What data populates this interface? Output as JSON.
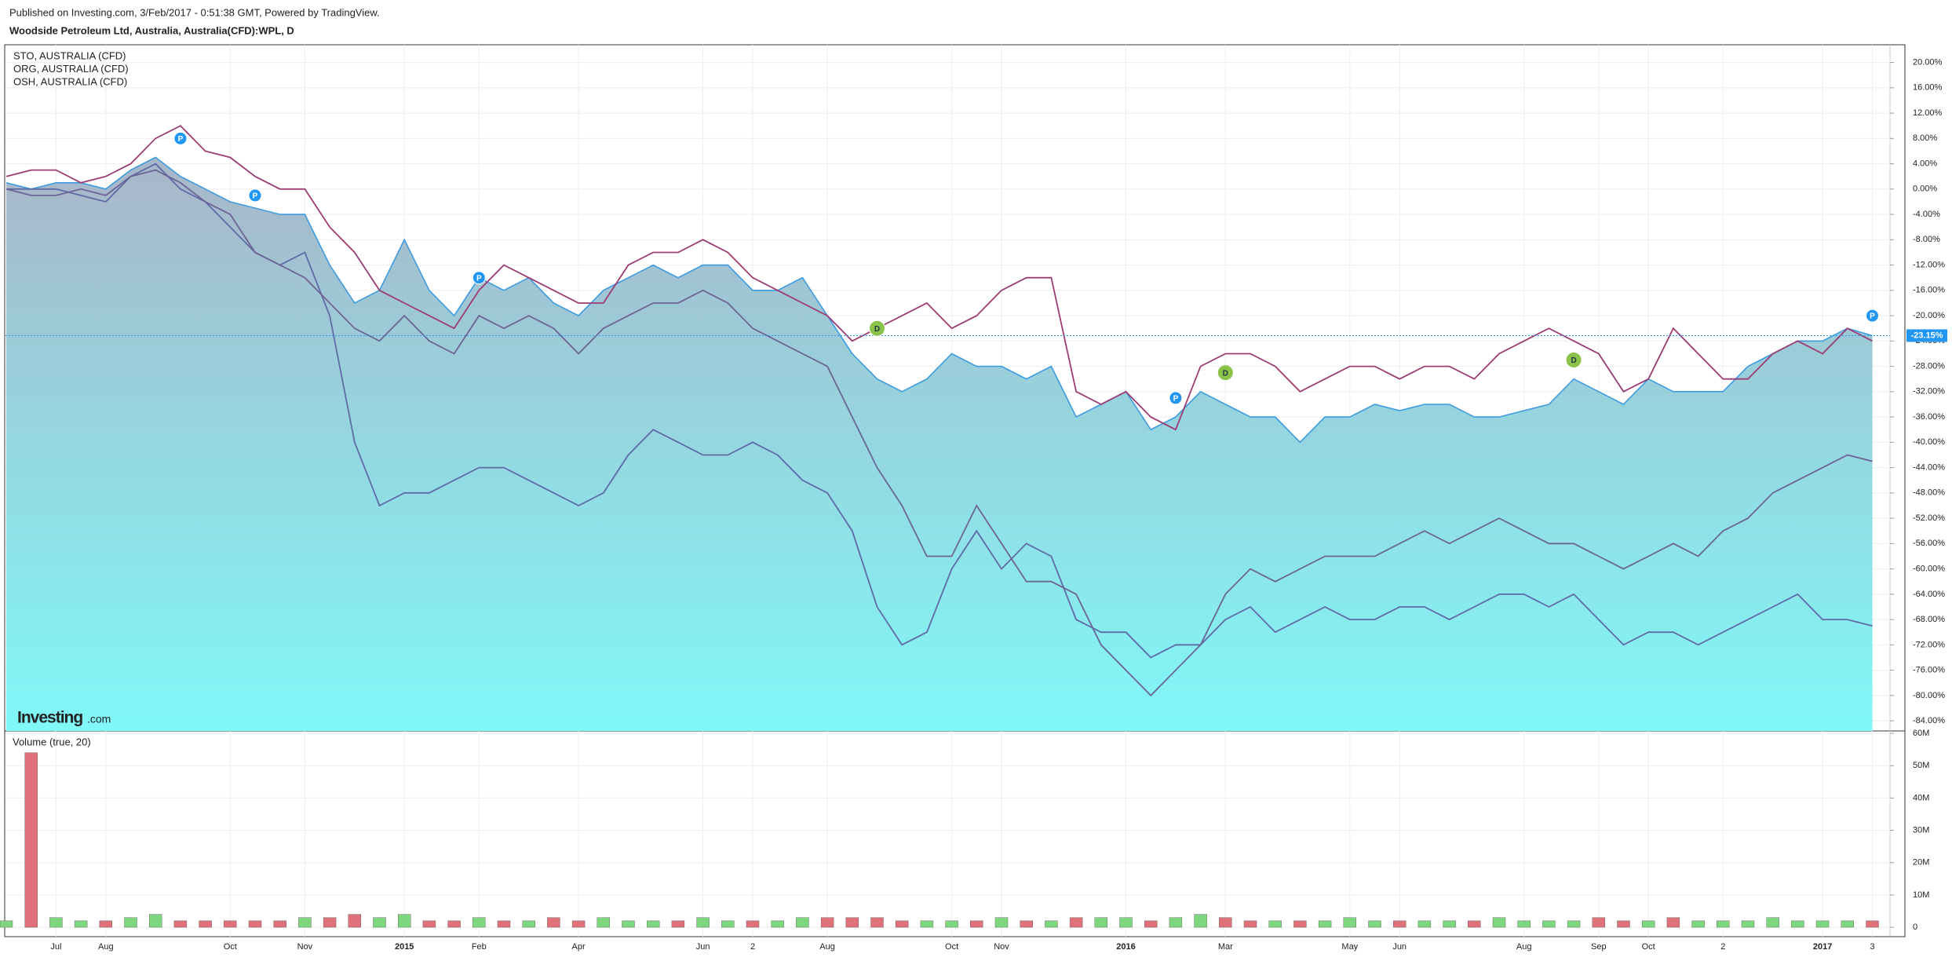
{
  "header": {
    "published": "Published on Investing.com, 3/Feb/2017 - 0:51:38 GMT, Powered by TradingView.",
    "title": "Woodside Petroleum Ltd, Australia, Australia(CFD):WPL, D"
  },
  "watermark": {
    "brand": "Investing",
    "suffix": ".com"
  },
  "chart_data": [
    {
      "type": "area",
      "categories": [
        null,
        null,
        "Jul",
        null,
        "Aug",
        null,
        null,
        null,
        null,
        "Oct",
        null,
        null,
        "Nov",
        null,
        null,
        null,
        "2015",
        null,
        null,
        "Feb",
        null,
        null,
        null,
        "Apr",
        null,
        null,
        null,
        null,
        "Jun",
        null,
        "2",
        null,
        null,
        "Aug",
        null,
        null,
        null,
        null,
        "Oct",
        null,
        "Nov",
        null,
        null,
        null,
        null,
        "2016",
        null,
        null,
        null,
        "Mar",
        null,
        null,
        null,
        null,
        "May",
        null,
        "Jun",
        null,
        null,
        null,
        null,
        "Aug",
        null,
        null,
        "Sep",
        null,
        "Oct",
        null,
        null,
        "2",
        null,
        null,
        null,
        "2017",
        null,
        "3"
      ],
      "bold_categories": [
        "2015",
        "2016",
        "2017"
      ],
      "main": {
        "color": "#3d9be0",
        "area_top": "#a9b6c9",
        "area_bottom": "#80f8f8",
        "values": [
          1,
          0,
          1,
          1,
          0,
          3,
          5,
          2,
          0,
          -2,
          -3,
          -4,
          -4,
          -12,
          -18,
          -16,
          -8,
          -16,
          -20,
          -14,
          -16,
          -14,
          -18,
          -20,
          -16,
          -14,
          -12,
          -14,
          -12,
          -12,
          -16,
          -16,
          -14,
          -20,
          -26,
          -30,
          -32,
          -30,
          -26,
          -28,
          -28,
          -30,
          -28,
          -36,
          -34,
          -32,
          -38,
          -36,
          -32,
          -34,
          -36,
          -36,
          -40,
          -36,
          -36,
          -34,
          -35,
          -34,
          -34,
          -36,
          -36,
          -35,
          -34,
          -30,
          -32,
          -34,
          -30,
          -32,
          -32,
          -32,
          -28,
          -26,
          -24,
          -24,
          -22,
          -23.15
        ]
      },
      "current": {
        "value": -23.15,
        "label": "-23.15%",
        "color": "#2196f3"
      },
      "series": [
        {
          "name": "STO, AUSTRALIA (CFD)",
          "color": "#5f6aa6",
          "values": [
            0,
            0,
            0,
            -1,
            -2,
            2,
            4,
            0,
            -2,
            -6,
            -10,
            -12,
            -10,
            -20,
            -40,
            -50,
            -48,
            -48,
            -46,
            -44,
            -44,
            -46,
            -48,
            -50,
            -48,
            -42,
            -38,
            -40,
            -42,
            -42,
            -40,
            -42,
            -46,
            -48,
            -54,
            -66,
            -72,
            -70,
            -60,
            -54,
            -60,
            -56,
            -58,
            -68,
            -70,
            -70,
            -74,
            -72,
            -72,
            -68,
            -66,
            -70,
            -68,
            -66,
            -68,
            -68,
            -66,
            -66,
            -68,
            -66,
            -64,
            -64,
            -66,
            -64,
            -68,
            -72,
            -70,
            -70,
            -72,
            -70,
            -68,
            -66,
            -64,
            -68,
            -68,
            -69
          ]
        },
        {
          "name": "ORG, AUSTRALIA (CFD)",
          "color": "#9c3c72",
          "values": [
            2,
            3,
            3,
            1,
            2,
            4,
            8,
            10,
            6,
            5,
            2,
            0,
            0,
            -6,
            -10,
            -16,
            -18,
            -20,
            -22,
            -16,
            -12,
            -14,
            -16,
            -18,
            -18,
            -12,
            -10,
            -10,
            -8,
            -10,
            -14,
            -16,
            -18,
            -20,
            -24,
            -22,
            -20,
            -18,
            -22,
            -20,
            -16,
            -14,
            -14,
            -32,
            -34,
            -32,
            -36,
            -38,
            -28,
            -26,
            -26,
            -28,
            -32,
            -30,
            -28,
            -28,
            -30,
            -28,
            -28,
            -30,
            -26,
            -24,
            -22,
            -24,
            -26,
            -32,
            -30,
            -22,
            -26,
            -30,
            -30,
            -26,
            -24,
            -26,
            -22,
            -24
          ]
        },
        {
          "name": "OSH, AUSTRALIA (CFD)",
          "color": "#6c6494",
          "values": [
            0,
            -1,
            -1,
            0,
            -1,
            2,
            3,
            1,
            -2,
            -4,
            -10,
            -12,
            -14,
            -18,
            -22,
            -24,
            -20,
            -24,
            -26,
            -20,
            -22,
            -20,
            -22,
            -26,
            -22,
            -20,
            -18,
            -18,
            -16,
            -18,
            -22,
            -24,
            -26,
            -28,
            -36,
            -44,
            -50,
            -58,
            -58,
            -50,
            -56,
            -62,
            -62,
            -64,
            -72,
            -76,
            -80,
            -76,
            -72,
            -64,
            -60,
            -62,
            -60,
            -58,
            -58,
            -58,
            -56,
            -54,
            -56,
            -54,
            -52,
            -54,
            -56,
            -56,
            -58,
            -60,
            -58,
            -56,
            -58,
            -54,
            -52,
            -48,
            -46,
            -44,
            -42,
            -43
          ]
        }
      ],
      "events": [
        {
          "label": "P",
          "index": 7,
          "value": 8,
          "color": "#2196f3"
        },
        {
          "label": "P",
          "index": 10,
          "value": -1,
          "color": "#2196f3"
        },
        {
          "label": "P",
          "index": 19,
          "value": -14,
          "color": "#2196f3"
        },
        {
          "label": "D",
          "index": 35,
          "value": -22,
          "color": "#8bc34a"
        },
        {
          "label": "P",
          "index": 47,
          "value": -33,
          "color": "#2196f3"
        },
        {
          "label": "D",
          "index": 49,
          "value": -29,
          "color": "#8bc34a"
        },
        {
          "label": "D",
          "index": 63,
          "value": -27,
          "color": "#8bc34a"
        },
        {
          "label": "P",
          "index": 75,
          "value": -20,
          "color": "#2196f3"
        }
      ],
      "ylim": [
        -85.6,
        22.8
      ],
      "yticks": [
        {
          "value": 20,
          "label": "20.00%"
        },
        {
          "value": 16,
          "label": "16.00%"
        },
        {
          "value": 12,
          "label": "12.00%"
        },
        {
          "value": 8,
          "label": "8.00%"
        },
        {
          "value": 4,
          "label": "4.00%"
        },
        {
          "value": 0,
          "label": "0.00%"
        },
        {
          "value": -4,
          "label": "-4.00%"
        },
        {
          "value": -8,
          "label": "-8.00%"
        },
        {
          "value": -12,
          "label": "-12.00%"
        },
        {
          "value": -16,
          "label": "-16.00%"
        },
        {
          "value": -20,
          "label": "-20.00%"
        },
        {
          "value": -24,
          "label": "-24.00%"
        },
        {
          "value": -28,
          "label": "-28.00%"
        },
        {
          "value": -32,
          "label": "-32.00%"
        },
        {
          "value": -36,
          "label": "-36.00%"
        },
        {
          "value": -40,
          "label": "-40.00%"
        },
        {
          "value": -44,
          "label": "-44.00%"
        },
        {
          "value": -48,
          "label": "-48.00%"
        },
        {
          "value": -52,
          "label": "-52.00%"
        },
        {
          "value": -56,
          "label": "-56.00%"
        },
        {
          "value": -60,
          "label": "-60.00%"
        },
        {
          "value": -64,
          "label": "-64.00%"
        },
        {
          "value": -68,
          "label": "-68.00%"
        },
        {
          "value": -72,
          "label": "-72.00%"
        },
        {
          "value": -76,
          "label": "-76.00%"
        },
        {
          "value": -80,
          "label": "-80.00%"
        },
        {
          "value": -84,
          "label": "-84.00%"
        }
      ],
      "grid": true
    },
    {
      "type": "bar",
      "title": "Volume (true, 20)",
      "up_color": "#7ed67e",
      "down_color": "#e0707a",
      "values": [
        2,
        54,
        3,
        2,
        2,
        3,
        4,
        2,
        2,
        2,
        2,
        2,
        3,
        3,
        4,
        3,
        4,
        2,
        2,
        3,
        2,
        2,
        3,
        2,
        3,
        2,
        2,
        2,
        3,
        2,
        2,
        2,
        3,
        3,
        3,
        3,
        2,
        2,
        2,
        2,
        3,
        2,
        2,
        3,
        3,
        3,
        2,
        3,
        4,
        3,
        2,
        2,
        2,
        2,
        3,
        2,
        2,
        2,
        2,
        2,
        3,
        2,
        2,
        2,
        3,
        2,
        2,
        3,
        2,
        2,
        2,
        3,
        2,
        2,
        2,
        2
      ],
      "ylim": [
        -2.9,
        60.5
      ],
      "yticks": [
        0,
        {
          "value": 10,
          "label": "10M"
        },
        {
          "value": 20,
          "label": "20M"
        },
        {
          "value": 30,
          "label": "30M"
        },
        {
          "value": 40,
          "label": "40M"
        },
        {
          "value": 50,
          "label": "50M"
        },
        {
          "value": 60,
          "label": "60M"
        }
      ],
      "grid": true
    }
  ]
}
